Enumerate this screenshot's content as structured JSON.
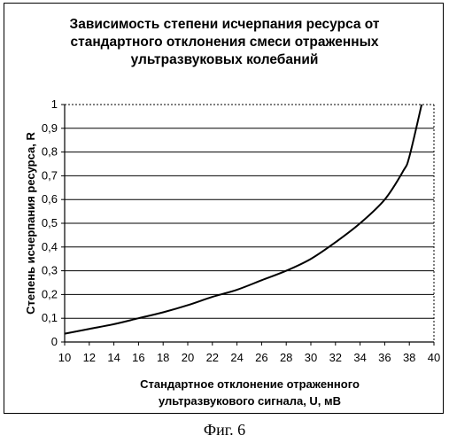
{
  "chart_data": {
    "type": "line",
    "title_lines": [
      "Зависимость степени исчерпания ресурса от",
      "стандартного отклонения смеси отраженных",
      "ультразвуковых колебаний"
    ],
    "xlabel_lines": [
      "Стандартное отклонение отраженного",
      "ультразвукового сигнала, U, мВ"
    ],
    "ylabel": "Степень исчерпания ресурса, R",
    "xlim": [
      10,
      40
    ],
    "ylim": [
      0,
      1
    ],
    "x_ticks": [
      "10",
      "12",
      "14",
      "16",
      "18",
      "20",
      "22",
      "24",
      "26",
      "28",
      "30",
      "32",
      "34",
      "36",
      "38",
      "40"
    ],
    "y_ticks": [
      "0",
      "0,1",
      "0,2",
      "0,3",
      "0,4",
      "0,5",
      "0,6",
      "0,7",
      "0,8",
      "0,9",
      "1"
    ],
    "grid": true,
    "gridline_style": "horizontal",
    "line_color": "#000000",
    "series": [
      {
        "x": [
          10,
          12,
          14,
          16,
          18,
          20,
          22,
          24,
          26,
          28,
          30,
          32,
          34,
          36,
          37.5,
          38,
          39
        ],
        "y": [
          0.035,
          0.055,
          0.075,
          0.1,
          0.125,
          0.155,
          0.19,
          0.22,
          0.26,
          0.3,
          0.35,
          0.42,
          0.5,
          0.6,
          0.72,
          0.78,
          1.0
        ]
      }
    ]
  },
  "caption": "Фиг. 6"
}
